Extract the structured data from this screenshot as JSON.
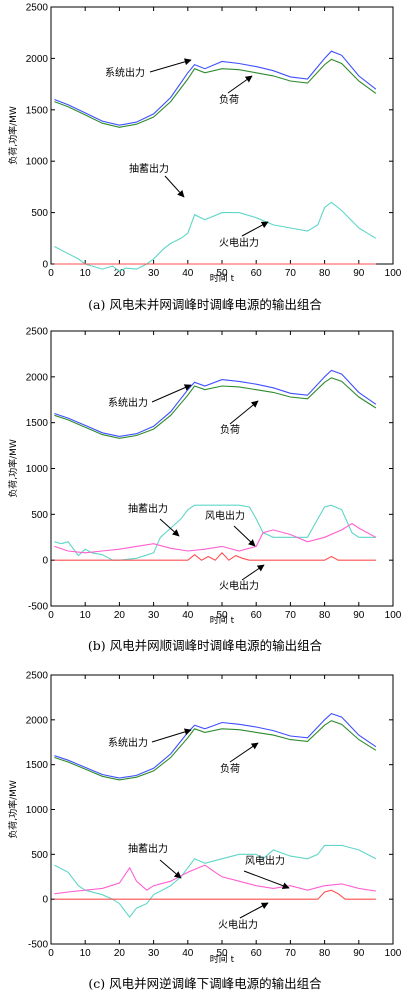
{
  "chart_data": [
    {
      "type": "line",
      "caption": "(a)  风电未并网调峰时调峰电源的输出组合",
      "xlabel": "时间 t",
      "ylabel": "负荷,功率/MW",
      "xlim": [
        0,
        100
      ],
      "ylim": [
        0,
        2500
      ],
      "xticks": [
        "0",
        "10",
        "20",
        "30",
        "40",
        "50",
        "60",
        "70",
        "80",
        "90",
        "100"
      ],
      "yticks": [
        "0",
        "500",
        "1000",
        "1500",
        "2000",
        "2500"
      ],
      "annotations": [
        "系统出力",
        "负荷",
        "抽蓄出力",
        "火电出力"
      ],
      "series": [
        {
          "name": "系统出力",
          "color": "#3f4fff",
          "x": [
            1,
            5,
            10,
            15,
            20,
            25,
            30,
            35,
            40,
            42,
            45,
            50,
            55,
            60,
            65,
            70,
            75,
            80,
            82,
            85,
            90,
            95
          ],
          "y": [
            1600,
            1550,
            1470,
            1390,
            1350,
            1380,
            1460,
            1620,
            1860,
            1940,
            1900,
            1970,
            1950,
            1920,
            1880,
            1820,
            1800,
            2000,
            2070,
            2030,
            1830,
            1700
          ]
        },
        {
          "name": "负荷",
          "color": "#2e8b2e",
          "x": [
            1,
            5,
            10,
            15,
            20,
            25,
            30,
            35,
            40,
            42,
            45,
            50,
            55,
            60,
            65,
            70,
            75,
            80,
            82,
            85,
            90,
            95
          ],
          "y": [
            1580,
            1530,
            1450,
            1370,
            1330,
            1360,
            1430,
            1580,
            1800,
            1900,
            1860,
            1900,
            1890,
            1860,
            1830,
            1780,
            1760,
            1940,
            1990,
            1950,
            1780,
            1660
          ]
        },
        {
          "name": "抽蓄出力",
          "color": "#5ed6c8",
          "x": [
            1,
            5,
            8,
            10,
            15,
            18,
            20,
            22,
            25,
            28,
            30,
            33,
            35,
            38,
            40,
            42,
            45,
            50,
            55,
            60,
            65,
            70,
            75,
            78,
            80,
            82,
            85,
            90,
            95
          ],
          "y": [
            170,
            100,
            50,
            0,
            -50,
            -20,
            -70,
            -40,
            -50,
            0,
            50,
            150,
            200,
            250,
            300,
            480,
            430,
            500,
            500,
            450,
            380,
            350,
            320,
            380,
            550,
            600,
            520,
            350,
            250
          ]
        },
        {
          "name": "火电出力",
          "color": "#ff4f4f",
          "x": [
            1,
            95
          ],
          "y": [
            0,
            0
          ]
        }
      ]
    },
    {
      "type": "line",
      "caption": "(b)  风电并网顺调峰时调峰电源的输出组合",
      "xlabel": "时间 t",
      "ylabel": "负荷,功率/MW",
      "xlim": [
        0,
        100
      ],
      "ylim": [
        -500,
        2500
      ],
      "xticks": [
        "0",
        "10",
        "20",
        "30",
        "40",
        "50",
        "60",
        "70",
        "80",
        "90",
        "100"
      ],
      "yticks": [
        "-500",
        "0",
        "500",
        "1000",
        "1500",
        "2000",
        "2500"
      ],
      "annotations": [
        "系统出力",
        "负荷",
        "抽蓄出力",
        "风电出力",
        "火电出力"
      ],
      "series": [
        {
          "name": "系统出力",
          "color": "#3f4fff",
          "x": [
            1,
            5,
            10,
            15,
            20,
            25,
            30,
            35,
            40,
            42,
            45,
            50,
            55,
            60,
            65,
            70,
            75,
            80,
            82,
            85,
            90,
            95
          ],
          "y": [
            1600,
            1550,
            1470,
            1390,
            1350,
            1380,
            1460,
            1620,
            1860,
            1940,
            1900,
            1970,
            1950,
            1920,
            1880,
            1820,
            1800,
            2000,
            2070,
            2030,
            1830,
            1700
          ]
        },
        {
          "name": "负荷",
          "color": "#2e8b2e",
          "x": [
            1,
            5,
            10,
            15,
            20,
            25,
            30,
            35,
            40,
            42,
            45,
            50,
            55,
            60,
            65,
            70,
            75,
            80,
            82,
            85,
            90,
            95
          ],
          "y": [
            1580,
            1530,
            1450,
            1370,
            1330,
            1360,
            1430,
            1580,
            1800,
            1900,
            1860,
            1900,
            1890,
            1860,
            1830,
            1780,
            1760,
            1940,
            1990,
            1950,
            1780,
            1660
          ]
        },
        {
          "name": "抽蓄出力",
          "color": "#5ed6c8",
          "x": [
            1,
            3,
            5,
            8,
            10,
            12,
            15,
            18,
            20,
            25,
            30,
            32,
            35,
            38,
            40,
            42,
            45,
            50,
            55,
            58,
            60,
            62,
            65,
            70,
            75,
            78,
            80,
            82,
            85,
            88,
            90,
            95
          ],
          "y": [
            200,
            180,
            200,
            50,
            120,
            80,
            60,
            0,
            0,
            20,
            80,
            250,
            350,
            450,
            550,
            600,
            600,
            600,
            600,
            580,
            450,
            300,
            250,
            250,
            250,
            450,
            580,
            600,
            550,
            300,
            250,
            250
          ]
        },
        {
          "name": "风电出力",
          "color": "#ff5fd0",
          "x": [
            1,
            5,
            10,
            15,
            20,
            25,
            30,
            35,
            40,
            45,
            50,
            55,
            60,
            62,
            65,
            70,
            75,
            80,
            85,
            88,
            90,
            95
          ],
          "y": [
            150,
            100,
            80,
            100,
            120,
            150,
            180,
            130,
            100,
            120,
            150,
            100,
            150,
            300,
            330,
            280,
            200,
            250,
            330,
            400,
            350,
            250
          ]
        },
        {
          "name": "火电出力",
          "color": "#ff4f4f",
          "x": [
            1,
            40,
            42,
            44,
            46,
            48,
            50,
            52,
            54,
            56,
            58,
            80,
            82,
            84,
            86,
            95
          ],
          "y": [
            0,
            0,
            60,
            0,
            40,
            0,
            80,
            0,
            50,
            20,
            0,
            0,
            40,
            0,
            0,
            0
          ]
        }
      ]
    },
    {
      "type": "line",
      "caption": "(c)  风电并网逆调峰下调峰电源的输出组合",
      "xlabel": "时间 t",
      "ylabel": "负荷,功率/MW",
      "xlim": [
        0,
        100
      ],
      "ylim": [
        -500,
        2500
      ],
      "xticks": [
        "0",
        "10",
        "20",
        "30",
        "40",
        "50",
        "60",
        "70",
        "80",
        "90",
        "100"
      ],
      "yticks": [
        "-500",
        "0",
        "500",
        "1000",
        "1500",
        "2000",
        "2500"
      ],
      "annotations": [
        "系统出力",
        "负荷",
        "抽蓄出力",
        "风电出力",
        "火电出力"
      ],
      "series": [
        {
          "name": "系统出力",
          "color": "#3f4fff",
          "x": [
            1,
            5,
            10,
            15,
            20,
            25,
            30,
            35,
            40,
            42,
            45,
            50,
            55,
            60,
            65,
            70,
            75,
            80,
            82,
            85,
            90,
            95
          ],
          "y": [
            1600,
            1550,
            1470,
            1390,
            1350,
            1380,
            1460,
            1620,
            1860,
            1940,
            1900,
            1970,
            1950,
            1920,
            1880,
            1820,
            1800,
            2000,
            2070,
            2030,
            1830,
            1700
          ]
        },
        {
          "name": "负荷",
          "color": "#2e8b2e",
          "x": [
            1,
            5,
            10,
            15,
            20,
            25,
            30,
            35,
            40,
            42,
            45,
            50,
            55,
            60,
            65,
            70,
            75,
            80,
            82,
            85,
            90,
            95
          ],
          "y": [
            1580,
            1530,
            1450,
            1370,
            1330,
            1360,
            1430,
            1580,
            1800,
            1900,
            1860,
            1900,
            1890,
            1860,
            1830,
            1780,
            1760,
            1940,
            1990,
            1950,
            1780,
            1660
          ]
        },
        {
          "name": "抽蓄出力",
          "color": "#5ed6c8",
          "x": [
            1,
            5,
            8,
            10,
            15,
            18,
            20,
            22,
            23,
            25,
            28,
            30,
            35,
            38,
            40,
            42,
            45,
            50,
            55,
            60,
            62,
            65,
            70,
            75,
            78,
            80,
            82,
            85,
            90,
            95
          ],
          "y": [
            380,
            300,
            150,
            100,
            50,
            0,
            -50,
            -150,
            -200,
            -100,
            -50,
            50,
            150,
            250,
            350,
            450,
            400,
            450,
            500,
            500,
            450,
            550,
            480,
            450,
            500,
            600,
            600,
            600,
            550,
            450
          ]
        },
        {
          "name": "风电出力",
          "color": "#ff5fd0",
          "x": [
            1,
            5,
            10,
            15,
            20,
            23,
            25,
            28,
            30,
            35,
            40,
            45,
            48,
            50,
            55,
            60,
            65,
            70,
            75,
            80,
            85,
            90,
            95
          ],
          "y": [
            60,
            80,
            100,
            120,
            180,
            350,
            200,
            100,
            150,
            200,
            300,
            380,
            300,
            250,
            200,
            150,
            120,
            150,
            100,
            150,
            170,
            120,
            90
          ]
        },
        {
          "name": "火电出力",
          "color": "#ff4f4f",
          "x": [
            1,
            78,
            80,
            82,
            84,
            86,
            95
          ],
          "y": [
            0,
            0,
            80,
            100,
            60,
            0,
            0
          ]
        }
      ]
    }
  ]
}
